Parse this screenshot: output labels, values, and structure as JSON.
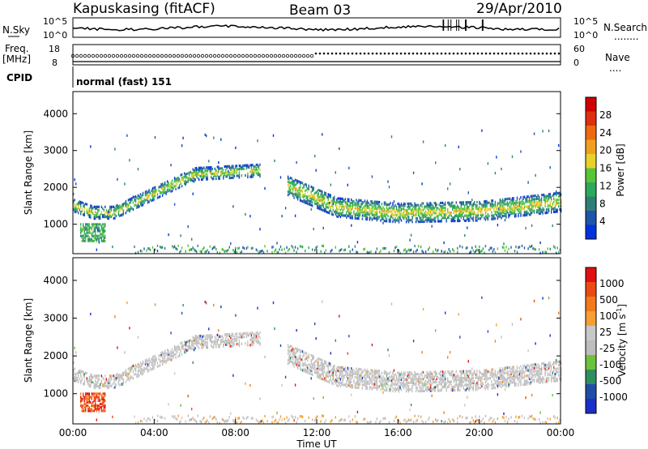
{
  "header": {
    "station": "Kapuskasing (fitACF)",
    "beam": "Beam 03",
    "date": "29/Apr/2010"
  },
  "noise_panel": {
    "left_label": "N.Sky",
    "right_label": "N.Search",
    "right_dots": "........",
    "tick_top_left": "10^5",
    "tick_bottom_left": "10^0",
    "tick_top_right": "10^5",
    "tick_bottom_right": "10^0"
  },
  "freq_panel": {
    "left_label_1": "Freq.",
    "left_label_2": "[MHz]",
    "right_label": "Nave",
    "right_dots": "....",
    "tick_top_left": "18",
    "tick_bottom_left": "8",
    "tick_top_right": "60",
    "tick_bottom_right": "0"
  },
  "cpid_panel": {
    "label": "CPID",
    "value": "normal (fast) 151"
  },
  "x_axis": {
    "label": "Time UT",
    "ticks": [
      "00:00",
      "04:00",
      "08:00",
      "12:00",
      "16:00",
      "20:00",
      "00:00"
    ]
  },
  "colors": {
    "power": [
      "#0033dd",
      "#1d55aa",
      "#2f7f78",
      "#2ea85a",
      "#58c43a",
      "#e8d12a",
      "#f0a020",
      "#ee6a10",
      "#dd3010",
      "#d00000"
    ],
    "velocity": [
      "#e01010",
      "#ec4a14",
      "#f27a1c",
      "#f5a032",
      "#c8c8c8",
      "#bdbdbd",
      "#6cc23a",
      "#2d8f5e",
      "#1e4da8",
      "#1a2fc8"
    ]
  },
  "chart_data": [
    {
      "type": "heatmap",
      "quantity": "power",
      "ylabel": "Slant Range [km]",
      "ylim": [
        200,
        4600
      ],
      "y_ticks": [
        "1000",
        "2000",
        "3000",
        "4000"
      ],
      "xlim_hours": [
        0,
        24
      ],
      "colorbar": {
        "label": "Power [dB]",
        "ticks": [
          "4",
          "8",
          "12",
          "16",
          "20",
          "24",
          "28"
        ]
      },
      "bands": [
        {
          "hours": [
            0.0,
            9.3
          ],
          "range_km": [
            1300,
            2600
          ],
          "note": "arc"
        },
        {
          "hours": [
            0.3,
            1.6
          ],
          "range_km": [
            550,
            1050
          ],
          "note": "near echoes"
        },
        {
          "hours": [
            10.5,
            24.0
          ],
          "range_km": [
            1000,
            2200
          ],
          "note": "arc"
        }
      ]
    },
    {
      "type": "heatmap",
      "quantity": "velocity",
      "ylabel": "Slant Range [km]",
      "ylim": [
        200,
        4600
      ],
      "y_ticks": [
        "1000",
        "2000",
        "3000",
        "4000"
      ],
      "xlim_hours": [
        0,
        24
      ],
      "colorbar": {
        "label_main": "Velocity [m s",
        "label_sup": "-1",
        "label_end": "]",
        "ticks": [
          "1000",
          "500",
          "100",
          "25",
          "-25",
          "-100",
          "-500",
          "-1000"
        ]
      }
    }
  ]
}
